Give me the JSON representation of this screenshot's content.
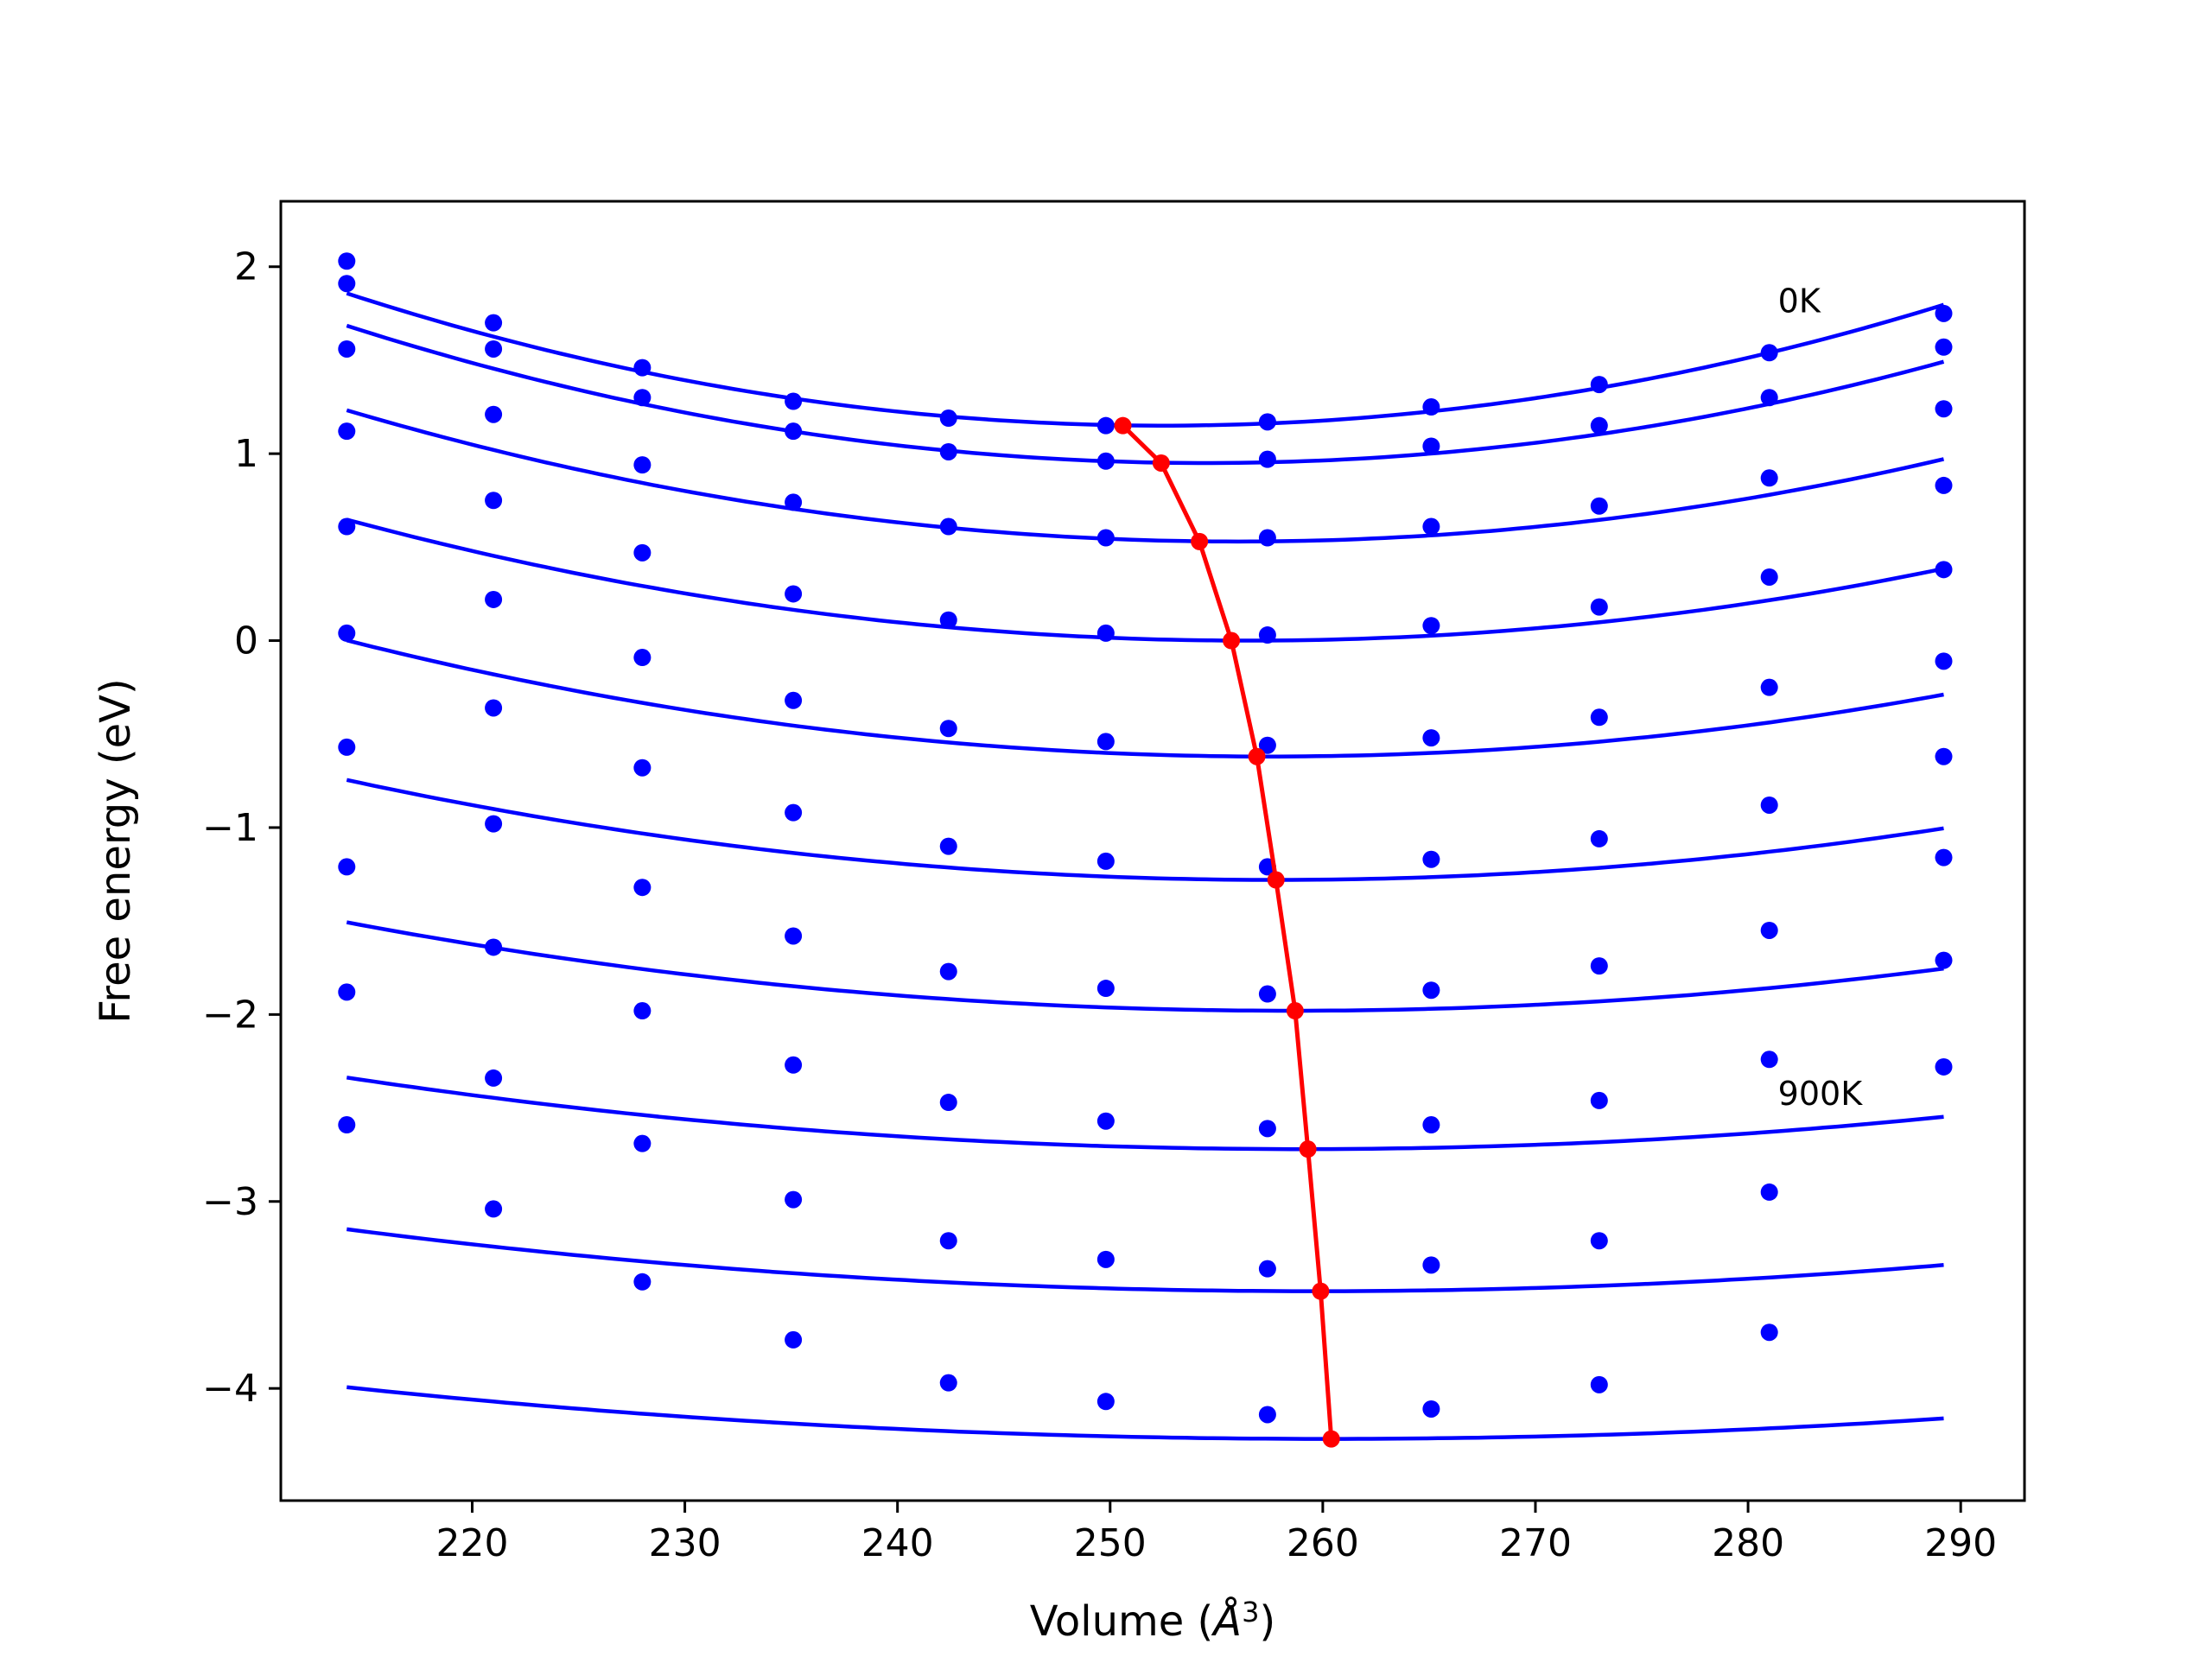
{
  "chart_data": {
    "type": "line",
    "title": "",
    "xlabel": "Volume (",
    "xlabel_unit": "Å",
    "xlabel_exp": "3",
    "xlabel_close": ")",
    "ylabel": "Free energy (eV)",
    "xlim": [
      211,
      293
    ],
    "ylim": [
      -4.6,
      2.35
    ],
    "x_ticks": [
      220,
      230,
      240,
      250,
      260,
      270,
      280,
      290
    ],
    "y_ticks": [
      2,
      1,
      0,
      -1,
      -2,
      -3,
      -4
    ],
    "y_tick_labels": [
      "2",
      "1",
      "0",
      "−1",
      "−2",
      "−3",
      "−4"
    ],
    "grid": false,
    "annotations": [
      {
        "text": "0K",
        "x": 281.0,
        "y": 1.82
      },
      {
        "text": "900K",
        "x": 281.0,
        "y": -2.42
      }
    ],
    "colors": {
      "fit": "#0000ff",
      "points": "#0000ff",
      "minimum": "#ff0000"
    },
    "volumes": [
      214.1,
      221.0,
      228.0,
      235.1,
      242.4,
      249.8,
      257.4,
      265.1,
      273.0,
      281.0,
      289.2
    ],
    "series": [
      {
        "points": [
          2.03,
          1.7,
          1.46,
          1.28,
          1.19,
          1.15,
          1.17,
          1.25,
          1.37,
          1.54,
          1.75
        ],
        "fit": {
          "a": 0.00048,
          "v0": 252.5,
          "e0": 1.15
        }
      },
      {
        "points": [
          1.91,
          1.56,
          1.3,
          1.12,
          1.01,
          0.96,
          0.97,
          1.04,
          1.15,
          1.3,
          1.57
        ],
        "fit": {
          "a": 0.00045,
          "v0": 254.5,
          "e0": 0.95
        }
      },
      {
        "points": [
          1.56,
          1.21,
          0.94,
          0.74,
          0.61,
          0.55,
          0.55,
          0.61,
          0.72,
          0.87,
          1.24
        ],
        "fit": {
          "a": 0.0004,
          "v0": 256.0,
          "e0": 0.53
        }
      },
      {
        "points": [
          1.12,
          0.75,
          0.47,
          0.25,
          0.11,
          0.04,
          0.03,
          0.08,
          0.18,
          0.34,
          0.83
        ],
        "fit": {
          "a": 0.00036,
          "v0": 256.5,
          "e0": 0.0
        }
      },
      {
        "points": [
          0.61,
          0.22,
          -0.09,
          -0.32,
          -0.47,
          -0.54,
          -0.56,
          -0.52,
          -0.41,
          -0.25,
          0.38
        ],
        "fit": {
          "a": 0.00033,
          "v0": 257.5,
          "e0": -0.62
        }
      },
      {
        "points": [
          0.04,
          -0.36,
          -0.68,
          -0.92,
          -1.1,
          -1.18,
          -1.21,
          -1.17,
          -1.06,
          -0.88,
          -0.11
        ],
        "fit": {
          "a": 0.00028,
          "v0": 257.8,
          "e0": -1.28
        }
      },
      {
        "points": [
          -0.57,
          -0.98,
          -1.32,
          -1.58,
          -1.77,
          -1.86,
          -1.89,
          -1.87,
          -1.74,
          -1.55,
          -0.62
        ],
        "fit": {
          "a": 0.00024,
          "v0": 258.5,
          "e0": -1.98
        }
      },
      {
        "points": [
          -1.21,
          -1.64,
          -1.98,
          -2.27,
          -2.47,
          -2.57,
          -2.61,
          -2.59,
          -2.46,
          -2.24,
          -1.16
        ],
        "fit": {
          "a": 0.00019,
          "v0": 259.0,
          "e0": -2.72
        }
      },
      {
        "points": [
          -1.88,
          -2.34,
          -2.69,
          -2.99,
          -3.21,
          -3.31,
          -3.36,
          -3.34,
          -3.21,
          -2.95,
          -1.71
        ],
        "fit": {
          "a": 0.00016,
          "v0": 259.6,
          "e0": -3.48
        }
      },
      {
        "points": [
          -2.59,
          -3.04,
          -3.43,
          -3.74,
          -3.97,
          -4.07,
          -4.14,
          -4.11,
          -3.98,
          -3.7,
          -2.28
        ],
        "fit": {
          "a": 0.00013,
          "v0": 260.2,
          "e0": -4.27
        }
      }
    ],
    "minimum_curve": {
      "x": [
        250.6,
        252.4,
        254.2,
        255.7,
        256.9,
        257.8,
        258.7,
        259.3,
        259.9,
        260.4
      ],
      "y": [
        1.15,
        0.95,
        0.53,
        0.0,
        -0.62,
        -1.28,
        -1.98,
        -2.72,
        -3.48,
        -4.27
      ]
    }
  }
}
